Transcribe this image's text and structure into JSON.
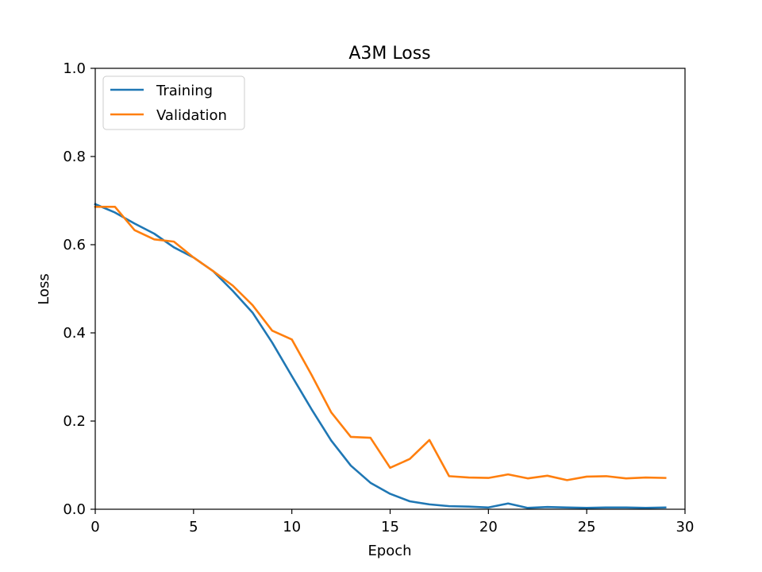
{
  "chart_data": {
    "type": "line",
    "title": "A3M Loss",
    "xlabel": "Epoch",
    "ylabel": "Loss",
    "xlim": [
      0,
      30
    ],
    "ylim": [
      0,
      1.0
    ],
    "xticks": [
      0,
      5,
      10,
      15,
      20,
      25,
      30
    ],
    "xtick_labels": [
      "0",
      "5",
      "10",
      "15",
      "20",
      "25",
      "30"
    ],
    "yticks": [
      0.0,
      0.2,
      0.4,
      0.6,
      0.8,
      1.0
    ],
    "ytick_labels": [
      "0.0",
      "0.2",
      "0.4",
      "0.6",
      "0.8",
      "1.0"
    ],
    "grid": false,
    "legend_position": "top-left",
    "x": [
      0,
      1,
      2,
      3,
      4,
      5,
      6,
      7,
      8,
      9,
      10,
      11,
      12,
      13,
      14,
      15,
      16,
      17,
      18,
      19,
      20,
      21,
      22,
      23,
      24,
      25,
      26,
      27,
      28,
      29
    ],
    "series": [
      {
        "name": "Training",
        "color": "#1f77b4",
        "values": [
          0.692,
          0.673,
          0.648,
          0.625,
          0.594,
          0.571,
          0.54,
          0.495,
          0.446,
          0.378,
          0.302,
          0.227,
          0.156,
          0.099,
          0.06,
          0.035,
          0.018,
          0.011,
          0.007,
          0.006,
          0.004,
          0.013,
          0.003,
          0.005,
          0.004,
          0.003,
          0.004,
          0.004,
          0.003,
          0.004
        ]
      },
      {
        "name": "Validation",
        "color": "#ff7f0e",
        "values": [
          0.686,
          0.686,
          0.633,
          0.612,
          0.607,
          0.571,
          0.54,
          0.507,
          0.463,
          0.405,
          0.385,
          0.305,
          0.22,
          0.164,
          0.162,
          0.094,
          0.114,
          0.157,
          0.075,
          0.072,
          0.071,
          0.079,
          0.07,
          0.076,
          0.066,
          0.074,
          0.075,
          0.07,
          0.072,
          0.071
        ]
      }
    ]
  }
}
